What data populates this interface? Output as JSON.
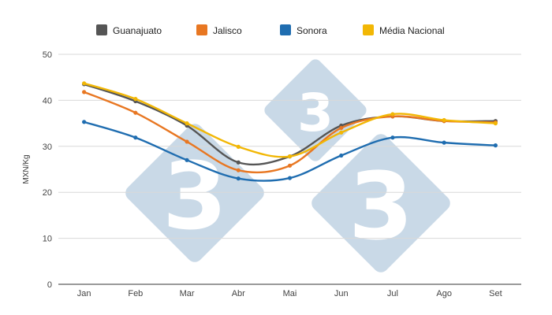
{
  "chart_data": {
    "type": "line",
    "title": "",
    "xlabel": "",
    "ylabel": "MXN/Kg",
    "categories": [
      "Jan",
      "Feb",
      "Mar",
      "Abr",
      "Mai",
      "Jun",
      "Jul",
      "Ago",
      "Set"
    ],
    "ylim": [
      0,
      50
    ],
    "yticks": [
      0,
      10,
      20,
      30,
      40,
      50
    ],
    "grid": true,
    "legend_position": "top-center",
    "series": [
      {
        "name": "Guanajuato",
        "color": "#555555",
        "values": [
          43.5,
          39.8,
          34.5,
          26.5,
          27.8,
          34.5,
          36.5,
          35.5,
          35.5
        ]
      },
      {
        "name": "Jalisco",
        "color": "#e87722",
        "values": [
          41.8,
          37.3,
          31.0,
          24.8,
          25.8,
          34.0,
          36.5,
          35.5,
          35.2
        ]
      },
      {
        "name": "Sonora",
        "color": "#1f6db0",
        "values": [
          35.3,
          31.9,
          27.0,
          23.0,
          23.1,
          28.0,
          31.9,
          30.8,
          30.2
        ]
      },
      {
        "name": "Média Nacional",
        "color": "#f2b705",
        "values": [
          43.7,
          40.3,
          35.0,
          29.9,
          27.8,
          33.0,
          37.0,
          35.7,
          35.0
        ]
      }
    ],
    "watermark": {
      "glyph": "3",
      "color": "#c9d9e7"
    }
  }
}
